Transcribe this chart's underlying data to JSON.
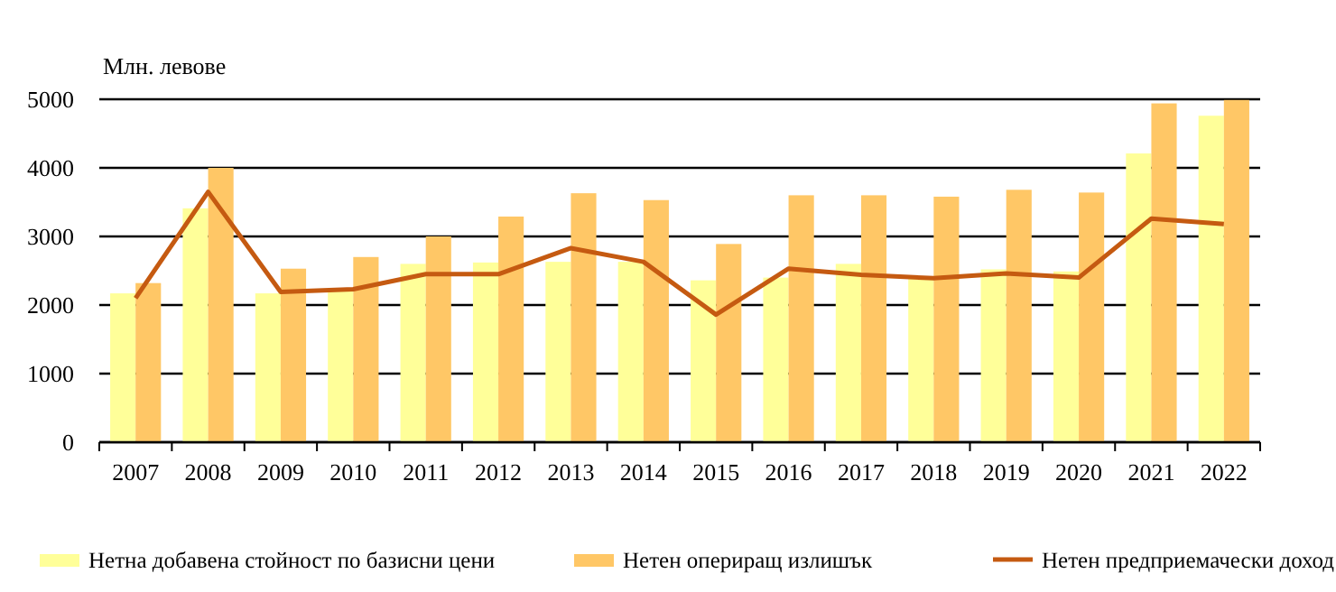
{
  "chart_data": {
    "type": "bar",
    "ylabel": "Млн. левове",
    "categories": [
      "2007",
      "2008",
      "2009",
      "2010",
      "2011",
      "2012",
      "2013",
      "2014",
      "2015",
      "2016",
      "2017",
      "2018",
      "2019",
      "2020",
      "2021",
      "2022"
    ],
    "series": [
      {
        "name": "Нетна добавена стойност по базисни цени",
        "color": "#ffff99",
        "values": [
          2170,
          3410,
          2170,
          2230,
          2600,
          2620,
          2630,
          2630,
          2360,
          2400,
          2600,
          2400,
          2520,
          2490,
          4210,
          4760
        ]
      },
      {
        "name": "Нетен опериращ излишък",
        "color": "#ffc766",
        "values": [
          2320,
          4000,
          2530,
          2700,
          3000,
          3290,
          3630,
          3530,
          2890,
          3600,
          3600,
          3580,
          3680,
          3640,
          4940,
          4990
        ]
      },
      {
        "name": "Нетен предприемачески доход",
        "type": "line",
        "color": "#c55a11",
        "values": [
          2100,
          3650,
          2190,
          2230,
          2450,
          2450,
          2830,
          2630,
          1860,
          2530,
          2440,
          2390,
          2460,
          2400,
          3260,
          3180
        ]
      }
    ],
    "ylim": [
      0,
      5000
    ],
    "yticks": [
      0,
      1000,
      2000,
      3000,
      4000,
      5000
    ],
    "grid": "y",
    "legend": "bottom",
    "marker": "none",
    "line_style": "solid"
  }
}
